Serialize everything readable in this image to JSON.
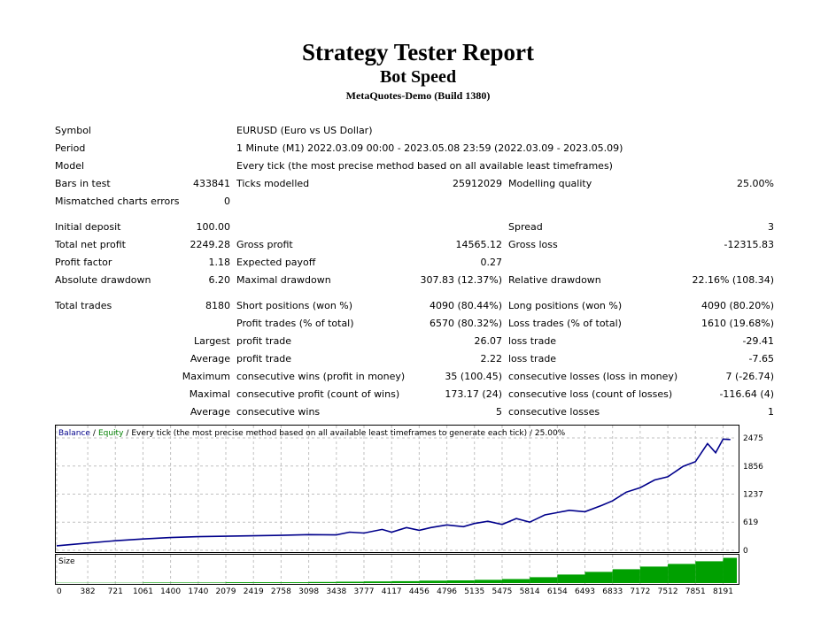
{
  "header": {
    "title": "Strategy Tester Report",
    "subtitle": "Bot Speed",
    "server": "MetaQuotes-Demo (Build 1380)"
  },
  "info": {
    "symbol_label": "Symbol",
    "symbol_value": "EURUSD (Euro vs US Dollar)",
    "period_label": "Period",
    "period_value": "1 Minute (M1) 2022.03.09 00:00 - 2023.05.08 23:59 (2022.03.09 - 2023.05.09)",
    "model_label": "Model",
    "model_value": "Every tick (the most precise method based on all available least timeframes)",
    "bars_label": "Bars in test",
    "bars_value": "433841",
    "ticks_label": "Ticks modelled",
    "ticks_value": "25912029",
    "quality_label": "Modelling quality",
    "quality_value": "25.00%",
    "mismatch_label": "Mismatched charts errors",
    "mismatch_value": "0"
  },
  "results": {
    "initial_deposit_label": "Initial deposit",
    "initial_deposit_value": "100.00",
    "spread_label": "Spread",
    "spread_value": "3",
    "net_profit_label": "Total net profit",
    "net_profit_value": "2249.28",
    "gross_profit_label": "Gross profit",
    "gross_profit_value": "14565.12",
    "gross_loss_label": "Gross loss",
    "gross_loss_value": "-12315.83",
    "profit_factor_label": "Profit factor",
    "profit_factor_value": "1.18",
    "expected_payoff_label": "Expected payoff",
    "expected_payoff_value": "0.27",
    "abs_dd_label": "Absolute drawdown",
    "abs_dd_value": "6.20",
    "max_dd_label": "Maximal drawdown",
    "max_dd_value": "307.83 (12.37%)",
    "rel_dd_label": "Relative drawdown",
    "rel_dd_value": "22.16% (108.34)",
    "total_trades_label": "Total trades",
    "total_trades_value": "8180",
    "short_label": "Short positions (won %)",
    "short_value": "4090 (80.44%)",
    "long_label": "Long positions (won %)",
    "long_value": "4090 (80.20%)",
    "profit_trades_label": "Profit trades (% of total)",
    "profit_trades_value": "6570 (80.32%)",
    "loss_trades_label": "Loss trades (% of total)",
    "loss_trades_value": "1610 (19.68%)",
    "largest_label": "Largest",
    "largest_profit_label": "profit trade",
    "largest_profit_value": "26.07",
    "largest_loss_label": "loss trade",
    "largest_loss_value": "-29.41",
    "average_label": "Average",
    "average_profit_label": "profit trade",
    "average_profit_value": "2.22",
    "average_loss_label": "loss trade",
    "average_loss_value": "-7.65",
    "maximum_label": "Maximum",
    "max_cons_wins_label": "consecutive wins (profit in money)",
    "max_cons_wins_value": "35 (100.45)",
    "max_cons_losses_label": "consecutive losses (loss in money)",
    "max_cons_losses_value": "7 (-26.74)",
    "maximal_label": "Maximal",
    "maxl_cons_profit_label": "consecutive profit (count of wins)",
    "maxl_cons_profit_value": "173.17 (24)",
    "maxl_cons_loss_label": "consecutive loss (count of losses)",
    "maxl_cons_loss_value": "-116.64 (4)",
    "average2_label": "Average",
    "avg_cons_wins_label": "consecutive wins",
    "avg_cons_wins_value": "5",
    "avg_cons_losses_label": "consecutive losses",
    "avg_cons_losses_value": "1"
  },
  "chart_data": [
    {
      "type": "line",
      "legend": [
        "Balance",
        "/",
        "Equity",
        "/ Every tick (the most precise method based on all available least timeframes to generate each tick) / 25.00%"
      ],
      "colors": {
        "balance": "#00008b",
        "equity": "#008000",
        "grid": "#c0c0c0"
      },
      "yticks": [
        "2475",
        "1856",
        "1237",
        "619",
        "0"
      ],
      "ylim": [
        0,
        2475
      ],
      "xlim": [
        0,
        8360
      ],
      "grid": true,
      "series": [
        {
          "name": "Balance",
          "x": [
            0,
            382,
            721,
            1061,
            1400,
            1740,
            2079,
            2419,
            2758,
            3098,
            3438,
            3600,
            3777,
            4000,
            4117,
            4300,
            4456,
            4600,
            4796,
            5000,
            5135,
            5300,
            5475,
            5650,
            5814,
            6000,
            6154,
            6300,
            6493,
            6700,
            6833,
            7000,
            7172,
            7350,
            7512,
            7700,
            7851,
            8000,
            8100,
            8191,
            8280
          ],
          "y": [
            100,
            160,
            210,
            250,
            280,
            300,
            310,
            320,
            330,
            345,
            340,
            400,
            380,
            460,
            400,
            500,
            440,
            500,
            560,
            520,
            590,
            640,
            570,
            700,
            620,
            780,
            830,
            880,
            850,
            990,
            1090,
            1280,
            1380,
            1550,
            1620,
            1850,
            1950,
            2350,
            2150,
            2450,
            2440
          ]
        }
      ]
    },
    {
      "type": "bar",
      "title": "Size",
      "color": "#00a000",
      "xticks": [
        "0",
        "382",
        "721",
        "1061",
        "1400",
        "1740",
        "2079",
        "2419",
        "2758",
        "3098",
        "3438",
        "3777",
        "4117",
        "4456",
        "4796",
        "5135",
        "5475",
        "5814",
        "6154",
        "6493",
        "6833",
        "7172",
        "7512",
        "7851",
        "8191"
      ],
      "x": [
        0,
        382,
        721,
        1061,
        1400,
        1740,
        2079,
        2419,
        2758,
        3098,
        3438,
        3777,
        4117,
        4456,
        4796,
        5135,
        5475,
        5814,
        6154,
        6493,
        6833,
        7172,
        7512,
        7851,
        8191,
        8360
      ],
      "values": [
        0.01,
        0.01,
        0.01,
        0.02,
        0.02,
        0.02,
        0.03,
        0.03,
        0.03,
        0.04,
        0.05,
        0.06,
        0.07,
        0.09,
        0.1,
        0.12,
        0.15,
        0.22,
        0.32,
        0.42,
        0.52,
        0.62,
        0.72,
        0.82,
        0.95,
        1.0
      ],
      "ylim": [
        0,
        1
      ]
    }
  ]
}
